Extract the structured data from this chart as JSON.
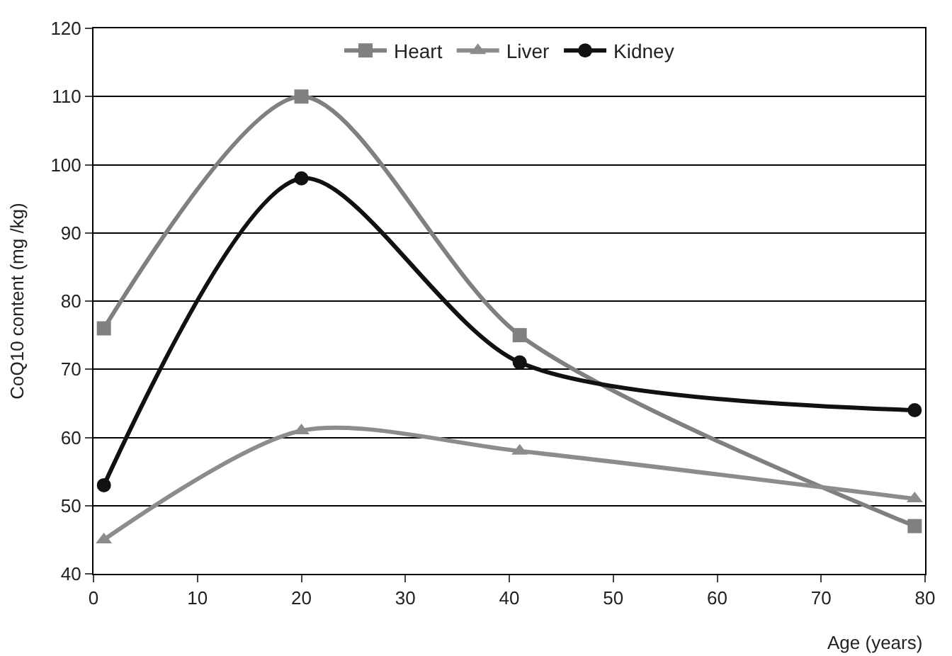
{
  "chart_data": {
    "type": "line",
    "xlabel": "Age (years)",
    "ylabel": "CoQ10 content (mg /kg)",
    "xlim": [
      0,
      80
    ],
    "xticks": [
      0,
      10,
      20,
      30,
      40,
      50,
      60,
      70,
      80
    ],
    "ylim": [
      40,
      120
    ],
    "yticks": [
      40,
      50,
      60,
      70,
      80,
      90,
      100,
      110,
      120
    ],
    "grid": "y",
    "legend": "top",
    "line_style": "solid",
    "series": [
      {
        "name": "Heart",
        "color": "#808080",
        "marker": "square",
        "x": [
          1,
          20,
          41,
          79
        ],
        "values": [
          76,
          110,
          75,
          47
        ]
      },
      {
        "name": "Liver",
        "color": "#8c8c8c",
        "marker": "triangle",
        "x": [
          1,
          20,
          41,
          79
        ],
        "values": [
          45,
          61,
          58,
          51
        ]
      },
      {
        "name": "Kidney",
        "color": "#111111",
        "marker": "circle",
        "x": [
          1,
          20,
          41,
          79
        ],
        "values": [
          53,
          98,
          71,
          64
        ]
      }
    ]
  }
}
